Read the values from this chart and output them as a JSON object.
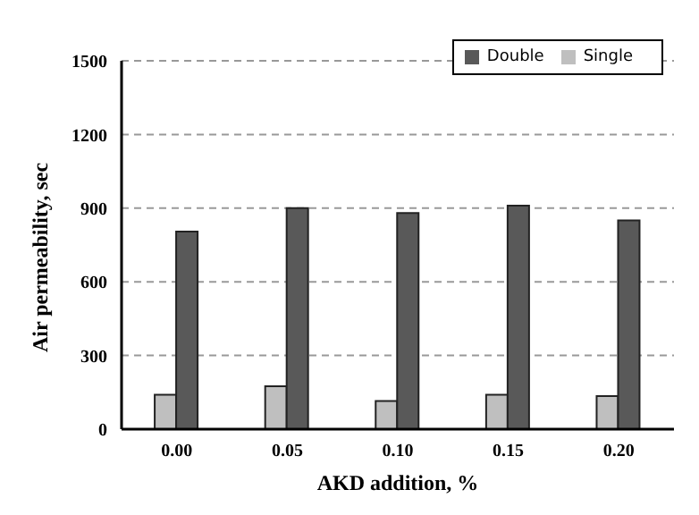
{
  "chart_data": {
    "type": "bar",
    "categories": [
      "0.00",
      "0.05",
      "0.10",
      "0.15",
      "0.20"
    ],
    "xlabel": "AKD addition, %",
    "ylabel": "Air permeability, sec",
    "series": [
      {
        "name": "Single",
        "color": "#bfbfbf",
        "values": [
          140,
          175,
          115,
          140,
          135
        ]
      },
      {
        "name": "Double",
        "color": "#595959",
        "values": [
          805,
          900,
          880,
          910,
          850
        ]
      }
    ],
    "ylim": [
      0,
      1500
    ],
    "yticks": [
      0,
      300,
      600,
      900,
      1200,
      1500
    ],
    "grid": "y",
    "legend": "top right"
  }
}
